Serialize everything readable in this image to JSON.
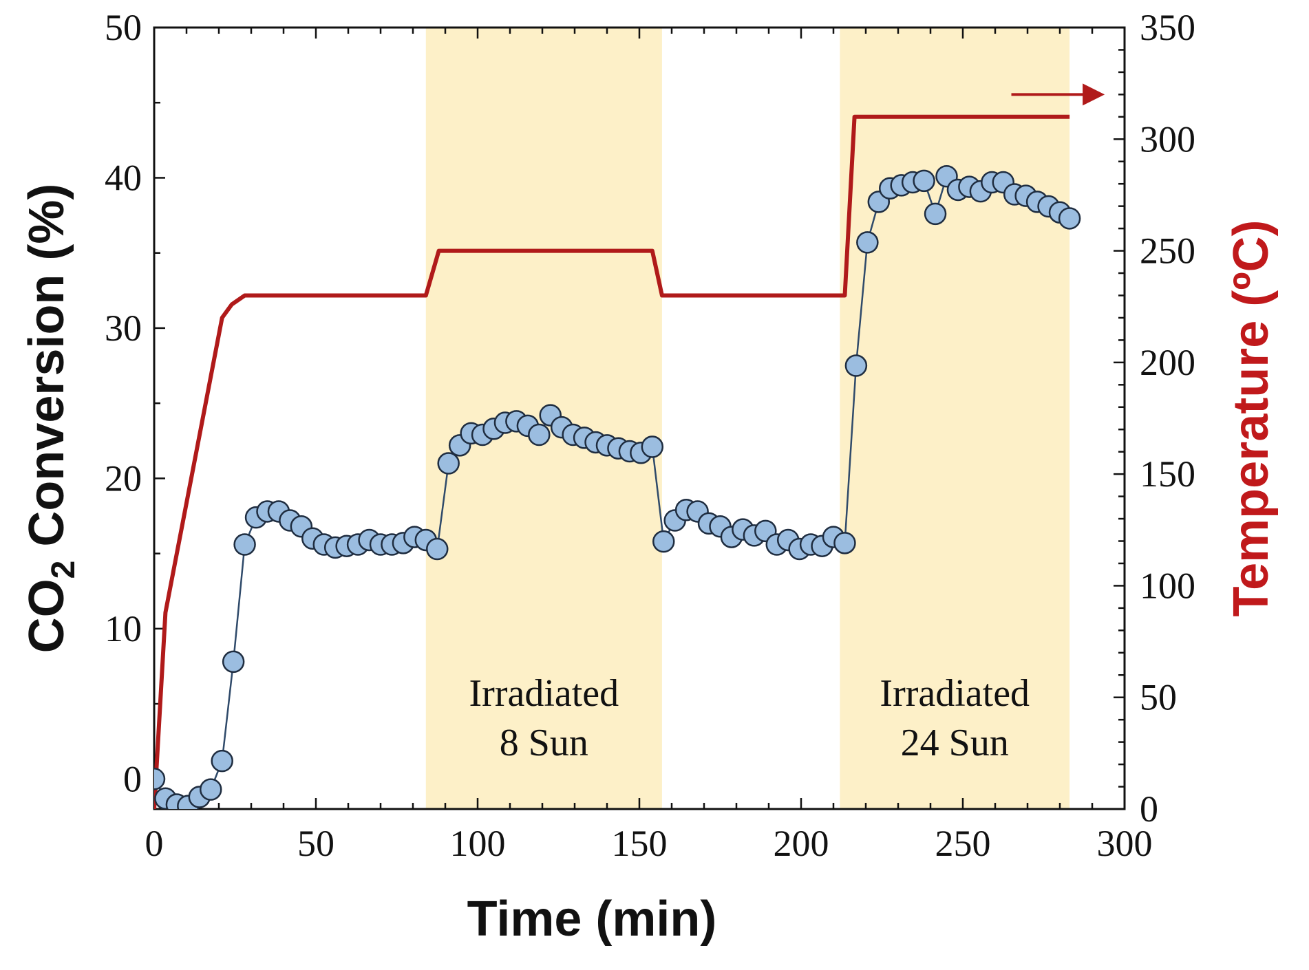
{
  "chart_data": {
    "type": "line",
    "x_axis": {
      "label": "Time (min)",
      "range": [
        0,
        300
      ],
      "ticks": [
        0,
        50,
        100,
        150,
        200,
        250,
        300
      ]
    },
    "y_axis_left": {
      "label_main": "CO",
      "label_sub": "2",
      "label_rest": " Conversion (%)",
      "range": [
        -2,
        50
      ],
      "ticks": [
        0,
        10,
        20,
        30,
        40,
        50
      ]
    },
    "y_axis_right": {
      "label": "Temperature (ºC)",
      "range": [
        0,
        350
      ],
      "ticks": [
        0,
        50,
        100,
        150,
        200,
        250,
        300,
        350
      ]
    },
    "shaded_regions": [
      {
        "x_start": 84,
        "x_end": 157,
        "label_line1": "Irradiated",
        "label_line2": "8 Sun"
      },
      {
        "x_start": 212,
        "x_end": 283,
        "label_line1": "Irradiated",
        "label_line2": "24 Sun"
      }
    ],
    "series": [
      {
        "name": "CO2 Conversion",
        "axis": "left",
        "marker": "circle",
        "color": "#9bbde0",
        "line_color": "#2f4a6a",
        "x": [
          0,
          3.5,
          7,
          10.5,
          14,
          17.5,
          21,
          24.5,
          28,
          31.5,
          35,
          38.5,
          42,
          45.5,
          49,
          52.5,
          56,
          59.5,
          63,
          66.5,
          70,
          73.5,
          77,
          80.5,
          84,
          87.5,
          91,
          94.5,
          98,
          101.5,
          105,
          108.5,
          112,
          115.5,
          119,
          122.5,
          126,
          129.5,
          133,
          136.5,
          140,
          143.5,
          147,
          150.5,
          154,
          157.5,
          161,
          164.5,
          168,
          171.5,
          175,
          178.5,
          182,
          185.5,
          189,
          192.5,
          196,
          199.5,
          203,
          206.5,
          210,
          213.5,
          217,
          220.5,
          224,
          227.5,
          231,
          234.5,
          238,
          241.5,
          245,
          248.5,
          252,
          255.5,
          259,
          262.5,
          266,
          269.5,
          273,
          276.5,
          280,
          283
        ],
        "y": [
          0,
          -1.3,
          -1.7,
          -1.8,
          -1.2,
          -0.7,
          1.2,
          7.8,
          15.6,
          17.4,
          17.8,
          17.8,
          17.2,
          16.8,
          16.0,
          15.6,
          15.4,
          15.5,
          15.6,
          15.9,
          15.6,
          15.6,
          15.7,
          16.1,
          15.9,
          15.3,
          21.0,
          22.2,
          23.0,
          22.9,
          23.3,
          23.7,
          23.8,
          23.5,
          22.9,
          24.2,
          23.4,
          22.9,
          22.7,
          22.4,
          22.2,
          22.0,
          21.8,
          21.7,
          22.1,
          15.8,
          17.2,
          17.9,
          17.8,
          17.0,
          16.8,
          16.1,
          16.6,
          16.2,
          16.5,
          15.6,
          15.9,
          15.3,
          15.6,
          15.5,
          16.1,
          15.7,
          27.5,
          35.7,
          38.4,
          39.3,
          39.5,
          39.7,
          39.8,
          37.6,
          40.1,
          39.2,
          39.4,
          39.1,
          39.7,
          39.7,
          38.9,
          38.8,
          38.4,
          38.1,
          37.7,
          37.3
        ]
      },
      {
        "name": "Temperature",
        "axis": "right",
        "color": "#b01a1a",
        "x": [
          0,
          3.5,
          21,
          24,
          28,
          84,
          88,
          150.5,
          154,
          157,
          210,
          213.5,
          216.5,
          283
        ],
        "y": [
          0,
          88,
          220,
          226,
          230,
          230,
          250,
          250,
          250,
          230,
          230,
          230,
          310,
          310
        ]
      }
    ],
    "annotation_arrow": {
      "x_start": 265,
      "x_end": 293,
      "y_right": 320,
      "points_to": "right axis",
      "color": "#b01a1a"
    }
  }
}
